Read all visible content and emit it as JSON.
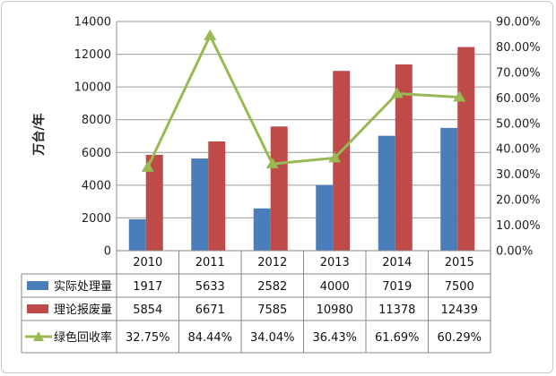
{
  "chart_data": {
    "type": "bar",
    "categories": [
      "2010",
      "2011",
      "2012",
      "2013",
      "2014",
      "2015"
    ],
    "ylabel": "万台/年",
    "ylim": [
      0,
      14000
    ],
    "yticks": [
      "0",
      "2000",
      "4000",
      "6000",
      "8000",
      "10000",
      "12000",
      "14000"
    ],
    "y2lim": [
      0,
      90
    ],
    "y2ticks": [
      "0.00%",
      "10.00%",
      "20.00%",
      "30.00%",
      "40.00%",
      "50.00%",
      "60.00%",
      "70.00%",
      "80.00%",
      "90.00%"
    ],
    "grid": true,
    "legend": "data-table",
    "series": [
      {
        "name": "实际处理量",
        "type": "bar",
        "axis": "left",
        "color": "#4a7ebb",
        "values": [
          1917,
          5633,
          2582,
          4000,
          7019,
          7500
        ],
        "labels": [
          "1917",
          "5633",
          "2582",
          "4000",
          "7019",
          "7500"
        ]
      },
      {
        "name": "理论报废量",
        "type": "bar",
        "axis": "left",
        "color": "#be4b48",
        "values": [
          5854,
          6671,
          7585,
          10980,
          11378,
          12439
        ],
        "labels": [
          "5854",
          "6671",
          "7585",
          "10980",
          "11378",
          "12439"
        ]
      },
      {
        "name": "绿色回收率",
        "type": "line",
        "axis": "right",
        "color": "#98b954",
        "values": [
          32.75,
          84.44,
          34.04,
          36.43,
          61.69,
          60.29
        ],
        "labels": [
          "32.75%",
          "84.44%",
          "34.04%",
          "36.43%",
          "61.69%",
          "60.29%"
        ]
      }
    ]
  }
}
